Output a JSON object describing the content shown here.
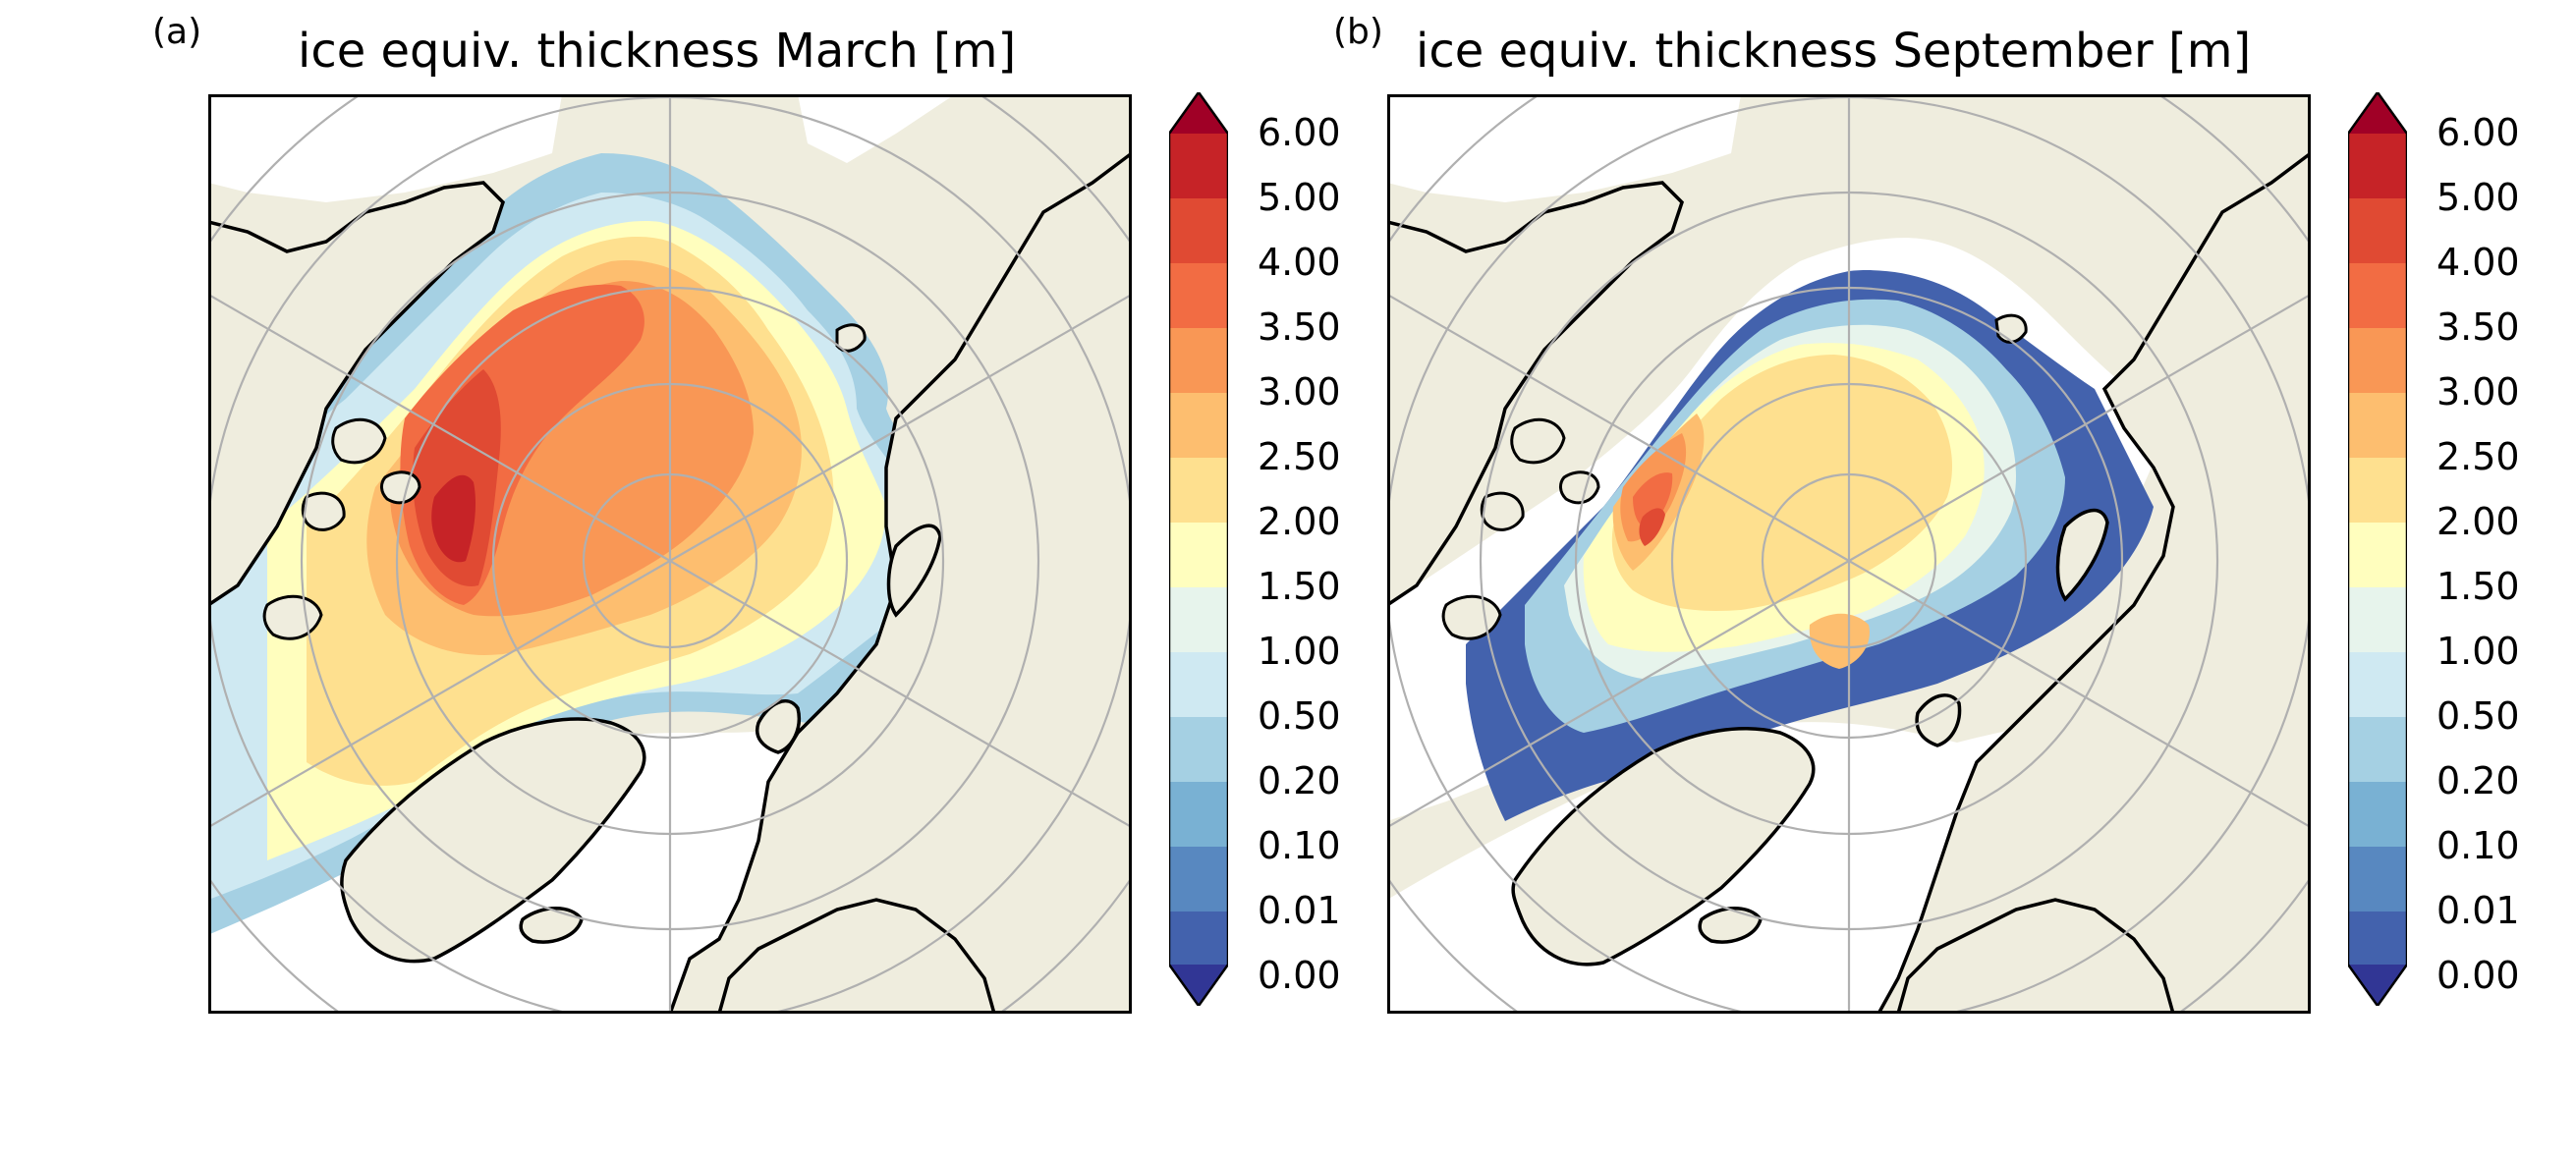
{
  "panels": [
    {
      "letter": "(a)",
      "title": "ice equiv. thickness March [m]"
    },
    {
      "letter": "(b)",
      "title": "ice equiv. thickness September [m]"
    }
  ],
  "colorbar": {
    "labels": [
      "6.00",
      "5.00",
      "4.00",
      "3.50",
      "3.00",
      "2.50",
      "2.00",
      "1.50",
      "1.00",
      "0.50",
      "0.20",
      "0.10",
      "0.01",
      "0.00"
    ],
    "colors": [
      "#c62327",
      "#e04a33",
      "#f26c43",
      "#f99755",
      "#fdbe6f",
      "#fee08f",
      "#fffebe",
      "#e7f4ec",
      "#cfe9f2",
      "#a5d0e3",
      "#79b1d3",
      "#5888c0",
      "#4362ad"
    ],
    "over_color": "#a00026",
    "under_color": "#313695"
  },
  "map_colors": {
    "land": "#efedde",
    "ocean": "#ffffff",
    "graticule": "#b0b0b0",
    "coastline": "#000000"
  }
}
